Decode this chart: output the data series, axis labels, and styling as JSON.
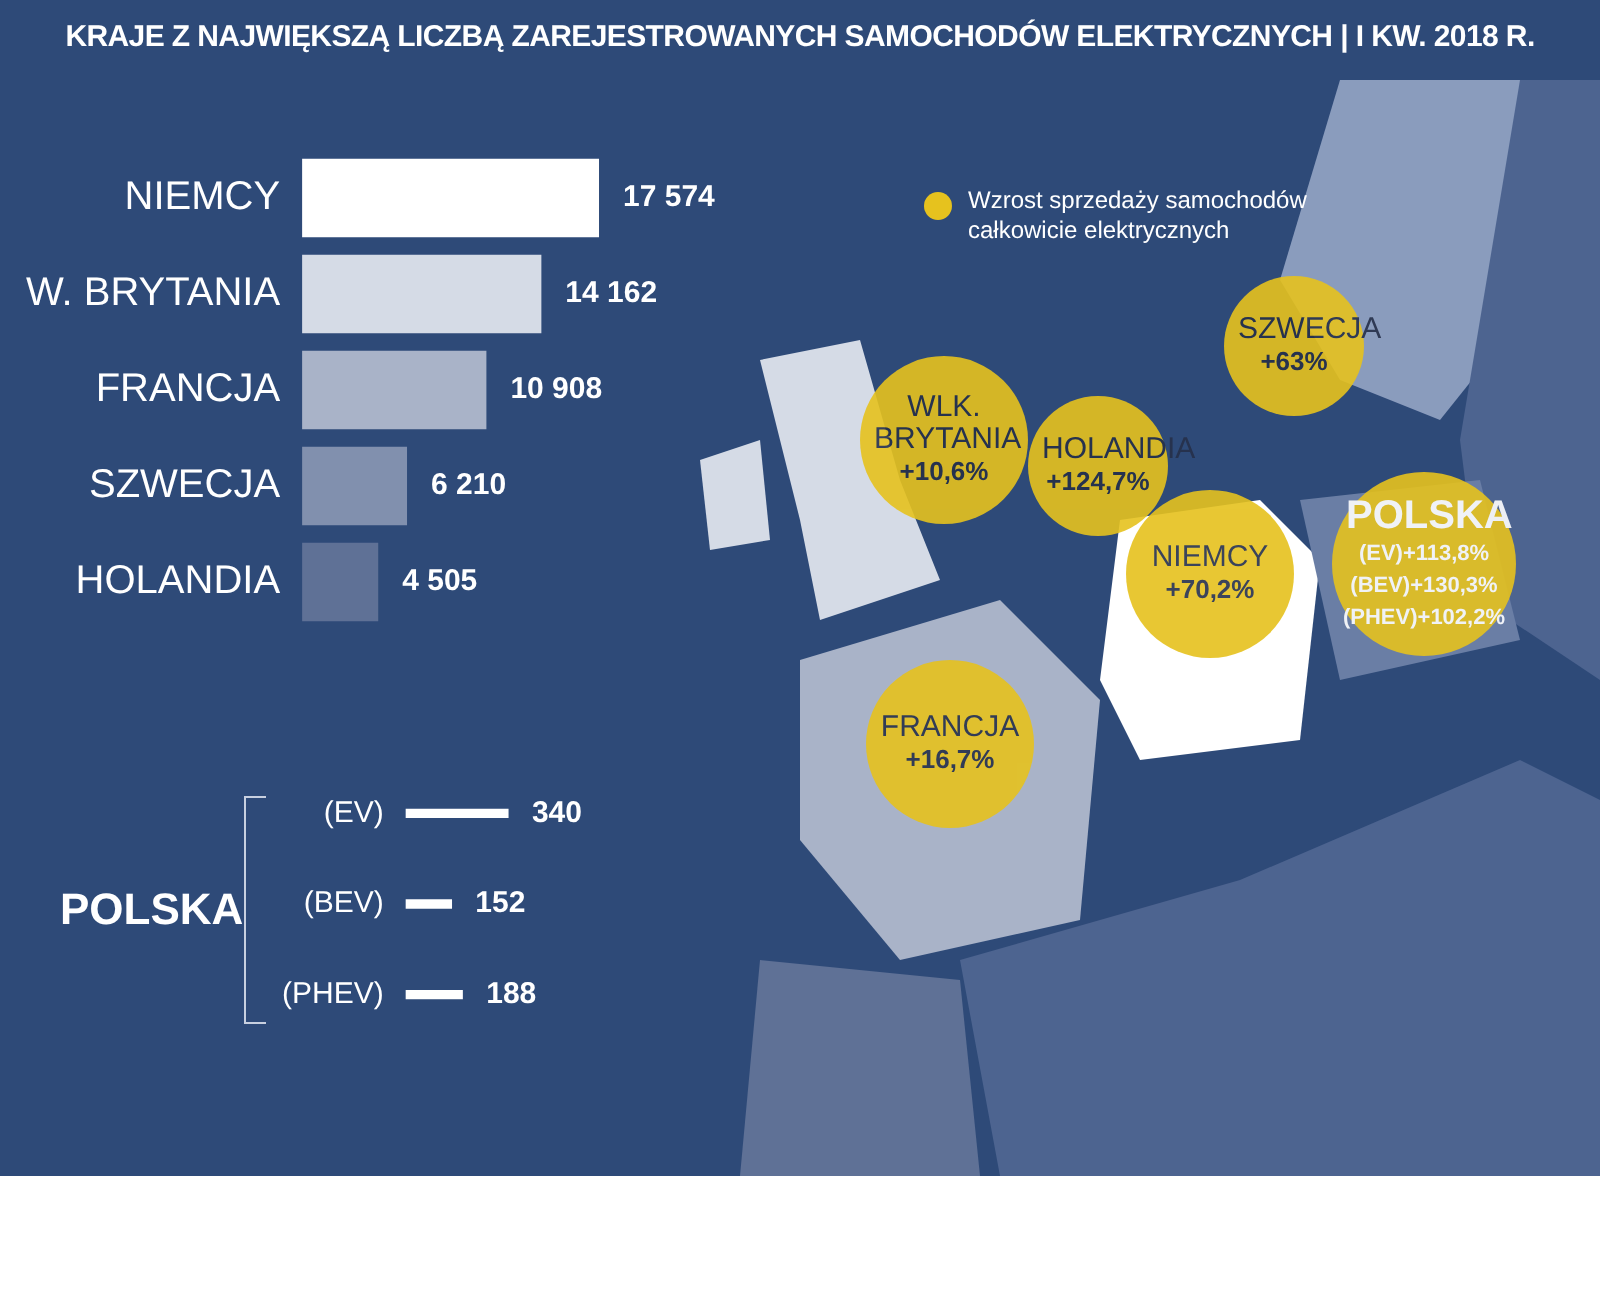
{
  "chart_data": [
    {
      "type": "bar",
      "orientation": "horizontal",
      "title": "KRAJE Z NAJWIĘKSZĄ LICZBĄ ZAREJESTROWANYCH SAMOCHODÓW ELEKTRYCZNYCH | I KW. 2018 R.",
      "categories": [
        "NIEMCY",
        "W. BRYTANIA",
        "FRANCJA",
        "SZWECJA",
        "HOLANDIA"
      ],
      "values": [
        17574,
        14162,
        10908,
        6210,
        4505
      ],
      "value_labels": [
        "17 574",
        "14 162",
        "10 908",
        "6 210",
        "4 505"
      ],
      "colors": [
        "#ffffff",
        "#d5dbe6",
        "#a9b3c8",
        "#8190ae",
        "#5f7196"
      ]
    },
    {
      "type": "bar",
      "orientation": "horizontal",
      "ylabel": "POLSKA",
      "categories": [
        "(EV)",
        "(BEV)",
        "(PHEV)"
      ],
      "values": [
        340,
        152,
        188
      ],
      "value_labels": [
        "340",
        "152",
        "188"
      ],
      "color": "#ffffff"
    },
    {
      "type": "other",
      "legend_title": "Wzrost sprzedaży samochodów całkowicie elektrycznych",
      "color": "#e6c21e",
      "annotations": [
        "WLK. BRYTANIA\n+10,6%",
        "HOLANDIA\n+124,7%",
        "SZWECJA\n+63%",
        "NIEMCY\n+70,2%",
        "FRANCJA\n+16,7%",
        "POLSKA\n(EV)+113,8%\n(BEV)+130,3%\n(PHEV)+102,2%"
      ]
    }
  ]
}
